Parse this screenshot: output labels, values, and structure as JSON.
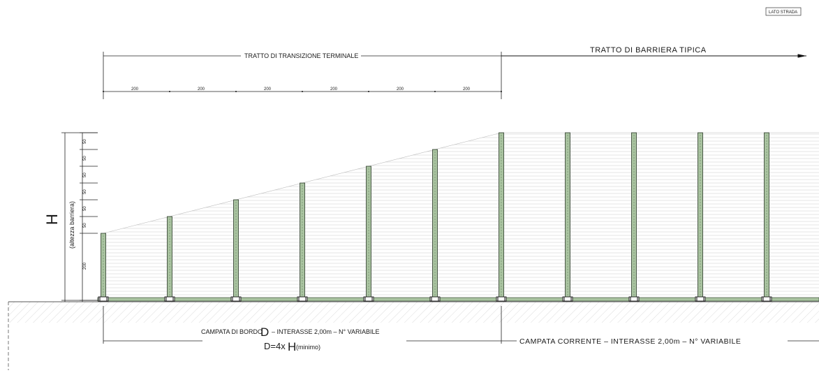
{
  "top_right_label": "LATO STRADA",
  "transition_label": "TRATTO DI TRANSIZIONE TERMINALE",
  "typical_label": "TRATTO DI BARRIERA TIPICA",
  "top_spacings": [
    "200",
    "200",
    "200",
    "200",
    "200",
    "200"
  ],
  "left_dims": [
    "50",
    "50",
    "50",
    "50",
    "50",
    "50",
    "200"
  ],
  "height_symbol": "H",
  "height_caption": "(altezza barriera)",
  "bottom_left": {
    "prefix": "CAMPATA DI BORDO",
    "symbol": "D",
    "suffix": "– INTERASSE 2,00m – N° VARIABILE",
    "formula_prefix": "D=4x",
    "formula_symbol": "H",
    "formula_suffix": "(minimo)"
  },
  "bottom_right": "CAMPATA CORRENTE – INTERASSE 2,00m – N° VARIABILE",
  "colors": {
    "post_fill": "#a9c3a0",
    "line": "#222222",
    "hatch": "#bbbbbb"
  }
}
